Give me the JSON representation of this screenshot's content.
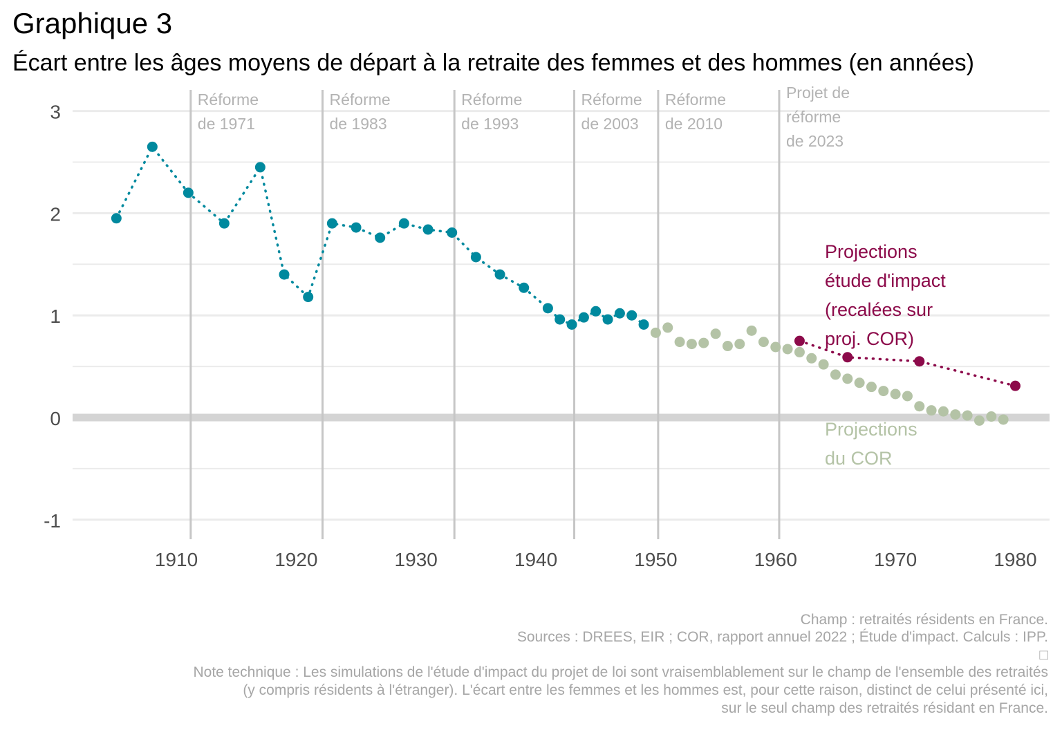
{
  "title": "Graphique 3",
  "subtitle": "Écart entre les âges moyens de départ à la retraite des femmes et des hommes (en années)",
  "footer": {
    "champ": "Champ : retraités résidents en France.",
    "sources": "Sources : DREES, EIR ; COR, rapport annuel 2022 ; Étude d'impact. Calculs : IPP.",
    "glyph": "□",
    "note_lines": [
      "Note technique : Les simulations de l'étude d'impact du projet de loi sont vraisemblablement sur le champ de l'ensemble des retraités",
      "(y compris résidents à l'étranger). L'écart entre les femmes et les hommes est, pour cette raison, distinct de celui présenté ici,",
      "sur le seul champ des retraités résidant en France."
    ]
  },
  "colors": {
    "observed": "#00899e",
    "cor": "#b4c3a6",
    "impact": "#8c0a4a",
    "grid": "#ebebeb",
    "zero_line": "#d4d4d4",
    "reform_line": "#c6c6c6",
    "reform_text": "#b3b3b3",
    "axis_text": "#4d4d4d"
  },
  "chart_data": {
    "type": "scatter",
    "xlim": [
      1902,
      1984
    ],
    "ylim": [
      -1,
      3
    ],
    "x_ticks": [
      1910,
      1920,
      1930,
      1940,
      1950,
      1960,
      1970,
      1980
    ],
    "y_ticks": [
      -1,
      0,
      1,
      2,
      3
    ],
    "y_tick_labels": [
      "-1",
      "0",
      "1",
      "2",
      "3"
    ],
    "grid": true,
    "reforms": [
      {
        "x": 1911.2,
        "label_lines": [
          "Réforme",
          "de 1971"
        ]
      },
      {
        "x": 1922.2,
        "label_lines": [
          "Réforme",
          "de 1983"
        ]
      },
      {
        "x": 1933.2,
        "label_lines": [
          "Réforme",
          "de 1993"
        ]
      },
      {
        "x": 1943.2,
        "label_lines": [
          "Réforme",
          "de 2003"
        ]
      },
      {
        "x": 1950.2,
        "label_lines": [
          "Réforme",
          "de 2010"
        ]
      },
      {
        "x": 1960.3,
        "label_lines": [
          "Projet de",
          "réforme",
          "de 2023"
        ]
      }
    ],
    "series": [
      {
        "key": "observed",
        "line": "dotted",
        "x": [
          1905,
          1908,
          1911,
          1914,
          1917,
          1919,
          1921,
          1923,
          1925,
          1927,
          1929,
          1931,
          1933,
          1935,
          1937,
          1939,
          1941,
          1942,
          1943,
          1944,
          1945,
          1946,
          1947,
          1948,
          1949
        ],
        "y": [
          1.95,
          2.65,
          2.2,
          1.9,
          2.45,
          1.4,
          1.18,
          1.9,
          1.86,
          1.76,
          1.9,
          1.84,
          1.81,
          1.57,
          1.4,
          1.27,
          1.07,
          0.96,
          0.91,
          0.98,
          1.04,
          0.96,
          1.02,
          1.0,
          0.91
        ]
      },
      {
        "key": "cor",
        "line": "none",
        "x": [
          1950,
          1951,
          1952,
          1953,
          1954,
          1955,
          1956,
          1957,
          1958,
          1959,
          1960,
          1961,
          1962,
          1963,
          1964,
          1965,
          1966,
          1967,
          1968,
          1969,
          1970,
          1971,
          1972,
          1973,
          1974,
          1975,
          1976,
          1977,
          1978,
          1979
        ],
        "y": [
          0.83,
          0.88,
          0.74,
          0.72,
          0.73,
          0.82,
          0.7,
          0.72,
          0.85,
          0.74,
          0.69,
          0.67,
          0.64,
          0.58,
          0.52,
          0.42,
          0.38,
          0.34,
          0.3,
          0.26,
          0.23,
          0.21,
          0.11,
          0.07,
          0.06,
          0.03,
          0.02,
          -0.03,
          0.01,
          -0.02
        ]
      },
      {
        "key": "impact",
        "line": "dotted",
        "x": [
          1962,
          1966,
          1972,
          1980
        ],
        "y": [
          0.75,
          0.59,
          0.55,
          0.31
        ]
      }
    ],
    "annotations": [
      {
        "key": "impact",
        "lines": [
          "Projections",
          "étude d'impact",
          "(recalées sur",
          "proj. COR)"
        ]
      },
      {
        "key": "cor",
        "lines": [
          "Projections",
          "du COR"
        ]
      }
    ]
  }
}
